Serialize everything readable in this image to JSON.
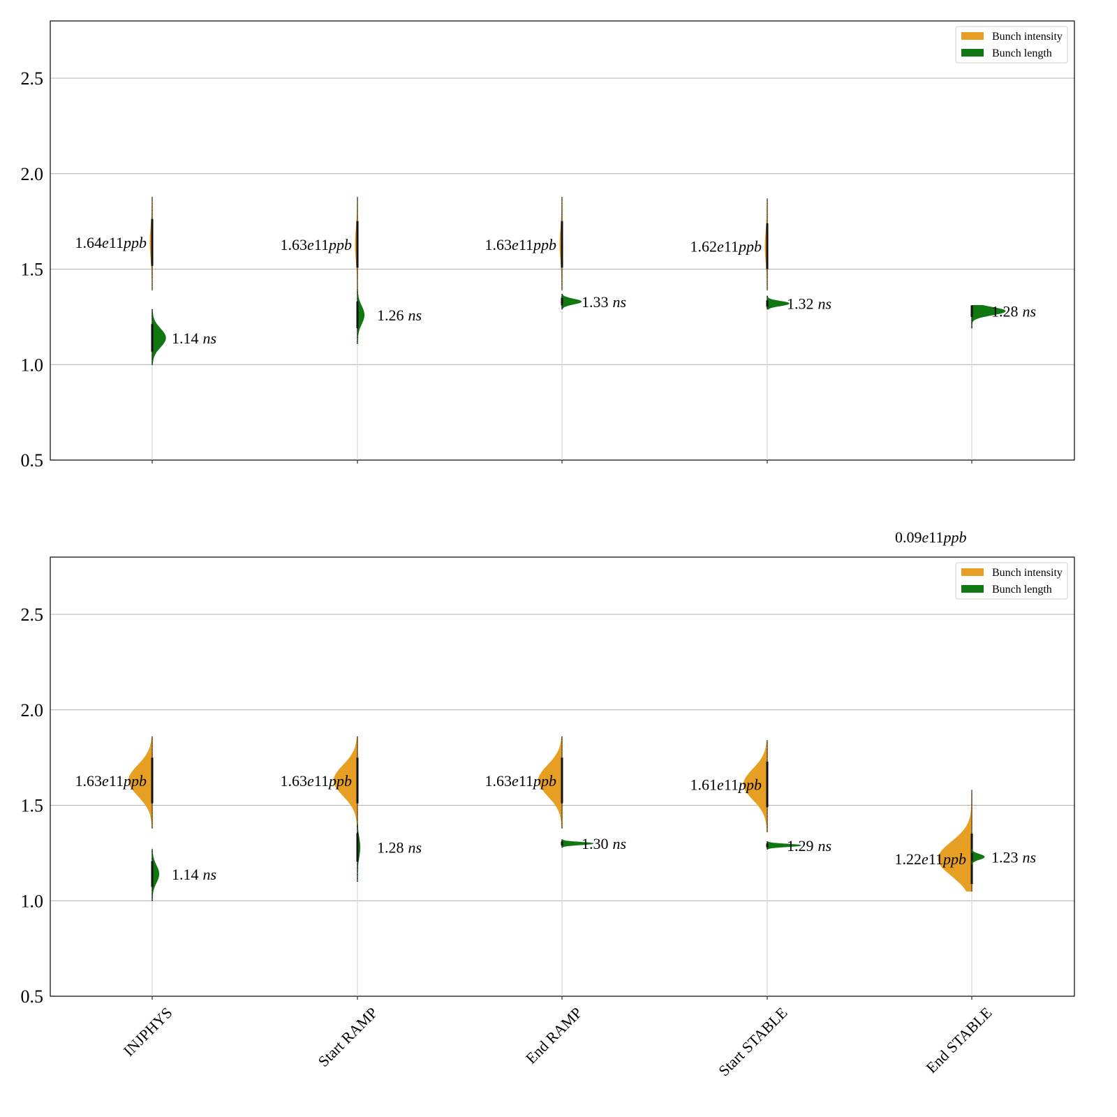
{
  "chart_data": [
    {
      "type": "violin",
      "categories": [
        "INJPHYS",
        "Start RAMP",
        "End RAMP",
        "Start STABLE",
        "End STABLE"
      ],
      "ylim": [
        0.5,
        2.8
      ],
      "yticks": [
        "0.5",
        "1.0",
        "1.5",
        "2.0",
        "2.5"
      ],
      "grid": true,
      "legend_placement": "top-right",
      "legend": [
        "Bunch intensity",
        "Bunch length"
      ],
      "colors": {
        "Bunch intensity": "#e69f22",
        "Bunch length": "#117711"
      },
      "series": [
        {
          "name": "Bunch intensity",
          "side": "left",
          "centers": [
            1.64,
            1.63,
            1.63,
            1.62,
            null
          ],
          "spread": [
            [
              1.39,
              1.88
            ],
            [
              1.39,
              1.88
            ],
            [
              1.39,
              1.88
            ],
            [
              1.39,
              1.87
            ],
            null
          ],
          "relative_width": [
            0.02,
            0.02,
            0.02,
            0.02,
            null
          ],
          "labels": [
            {
              "value": "1.64e11",
              "unit": "ppb"
            },
            {
              "value": "1.63e11",
              "unit": "ppb"
            },
            {
              "value": "1.63e11",
              "unit": "ppb"
            },
            {
              "value": "1.62e11",
              "unit": "ppb"
            },
            null
          ]
        },
        {
          "name": "Bunch length",
          "side": "right",
          "centers": [
            1.14,
            1.26,
            1.33,
            1.32,
            1.28
          ],
          "spread": [
            [
              1.0,
              1.29
            ],
            [
              1.11,
              1.39
            ],
            [
              1.29,
              1.37
            ],
            [
              1.29,
              1.36
            ],
            [
              1.19,
              1.31
            ]
          ],
          "relative_width": [
            0.16,
            0.08,
            0.23,
            0.26,
            0.4
          ],
          "labels": [
            {
              "value": "1.14",
              "unit": "ns"
            },
            {
              "value": "1.26",
              "unit": "ns"
            },
            {
              "value": "1.33",
              "unit": "ns"
            },
            {
              "value": "1.32",
              "unit": "ns"
            },
            {
              "value": "1.28",
              "unit": "ns"
            }
          ]
        }
      ],
      "annotations": [
        {
          "value": "0.09e11",
          "unit": "ppb",
          "category": "End STABLE"
        }
      ]
    },
    {
      "type": "violin",
      "categories": [
        "INJPHYS",
        "Start RAMP",
        "End RAMP",
        "Start STABLE",
        "End STABLE"
      ],
      "ylim": [
        0.5,
        2.8
      ],
      "yticks": [
        "0.5",
        "1.0",
        "1.5",
        "2.0",
        "2.5"
      ],
      "grid": true,
      "legend_placement": "top-right",
      "legend": [
        "Bunch intensity",
        "Bunch length"
      ],
      "colors": {
        "Bunch intensity": "#e69f22",
        "Bunch length": "#117711"
      },
      "series": [
        {
          "name": "Bunch intensity",
          "side": "left",
          "centers": [
            1.63,
            1.63,
            1.63,
            1.61,
            1.22
          ],
          "spread": [
            [
              1.38,
              1.86
            ],
            [
              1.38,
              1.86
            ],
            [
              1.38,
              1.86
            ],
            [
              1.36,
              1.84
            ],
            [
              1.05,
              1.58
            ]
          ],
          "relative_width": [
            0.28,
            0.28,
            0.28,
            0.28,
            0.4
          ],
          "labels": [
            {
              "value": "1.63e11",
              "unit": "ppb"
            },
            {
              "value": "1.63e11",
              "unit": "ppb"
            },
            {
              "value": "1.63e11",
              "unit": "ppb"
            },
            {
              "value": "1.61e11",
              "unit": "ppb"
            },
            {
              "value": "1.22e11",
              "unit": "ppb"
            }
          ]
        },
        {
          "name": "Bunch length",
          "side": "right",
          "centers": [
            1.14,
            1.28,
            1.3,
            1.29,
            1.23
          ],
          "spread": [
            [
              1.0,
              1.27
            ],
            [
              1.1,
              1.4
            ],
            [
              1.28,
              1.32
            ],
            [
              1.27,
              1.31
            ],
            [
              1.19,
              1.27
            ]
          ],
          "relative_width": [
            0.08,
            0.03,
            0.37,
            0.4,
            0.15
          ],
          "labels": [
            {
              "value": "1.14",
              "unit": "ns"
            },
            {
              "value": "1.28",
              "unit": "ns"
            },
            {
              "value": "1.30",
              "unit": "ns"
            },
            {
              "value": "1.29",
              "unit": "ns"
            },
            {
              "value": "1.23",
              "unit": "ns"
            }
          ]
        }
      ]
    }
  ]
}
